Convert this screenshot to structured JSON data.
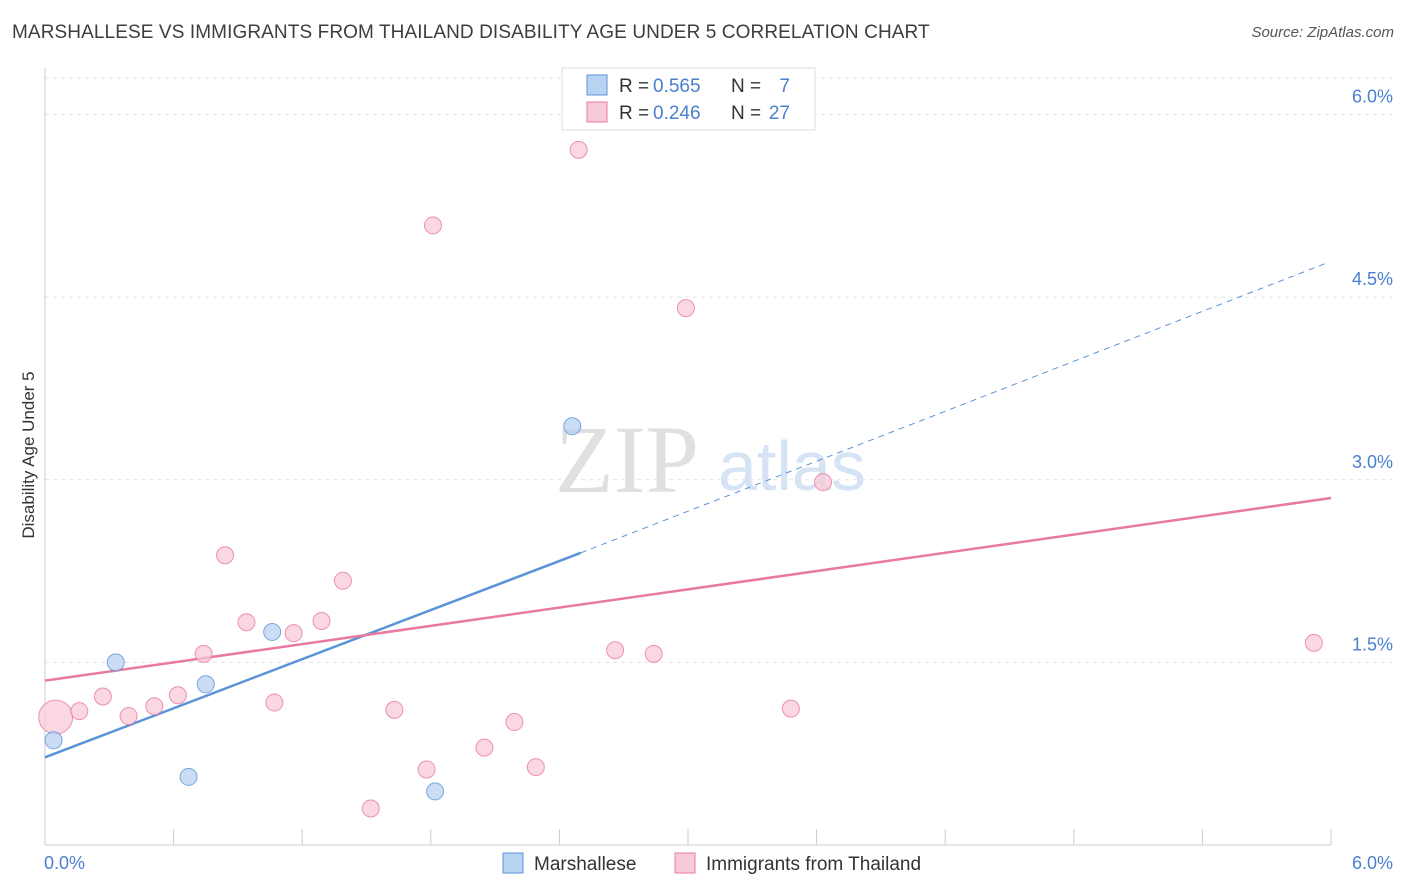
{
  "chart_data": {
    "type": "scatter",
    "title": "MARSHALLESE VS IMMIGRANTS FROM THAILAND DISABILITY AGE UNDER 5 CORRELATION CHART",
    "source": "Source: ZipAtlas.com",
    "xlabel": "",
    "ylabel": "Disability Age Under 5",
    "xlim": [
      0,
      6.0
    ],
    "ylim": [
      0,
      6.3
    ],
    "x_tick_labels": {
      "min": "0.0%",
      "max": "6.0%"
    },
    "y_ticks": [
      {
        "value": 1.5,
        "label": "1.5%"
      },
      {
        "value": 3.0,
        "label": "3.0%"
      },
      {
        "value": 4.5,
        "label": "4.5%"
      },
      {
        "value": 6.0,
        "label": "6.0%"
      }
    ],
    "grid": true,
    "watermark": {
      "zip": "ZIP",
      "atlas": "atlas"
    },
    "legend_stats": [
      {
        "r_label": "R =",
        "r_value": "0.565",
        "n_label": "N =",
        "n_value": "7"
      },
      {
        "r_label": "R =",
        "r_value": "0.246",
        "n_label": "N =",
        "n_value": "27"
      }
    ],
    "series": [
      {
        "name": "Marshallese",
        "color": "#5b93d8",
        "fill": "#b8d2f2",
        "points": [
          {
            "x": 0.04,
            "y": 0.86
          },
          {
            "x": 0.33,
            "y": 1.5
          },
          {
            "x": 0.67,
            "y": 0.56
          },
          {
            "x": 0.75,
            "y": 1.32
          },
          {
            "x": 1.06,
            "y": 1.75
          },
          {
            "x": 1.82,
            "y": 0.44
          },
          {
            "x": 2.46,
            "y": 3.44
          }
        ],
        "trend": {
          "x0": 0.0,
          "y0": 0.72,
          "x1": 2.5,
          "y1": 2.4,
          "dash_x1": 5.98,
          "dash_y1": 4.78
        }
      },
      {
        "name": "Immigrants from Thailand",
        "color": "#e87aa0",
        "fill": "#f8c9d7",
        "points": [
          {
            "x": 0.05,
            "y": 1.05,
            "big": true
          },
          {
            "x": 0.16,
            "y": 1.1
          },
          {
            "x": 0.27,
            "y": 1.22
          },
          {
            "x": 0.39,
            "y": 1.06
          },
          {
            "x": 0.51,
            "y": 1.14
          },
          {
            "x": 0.62,
            "y": 1.23
          },
          {
            "x": 0.74,
            "y": 1.57
          },
          {
            "x": 0.84,
            "y": 2.38
          },
          {
            "x": 0.94,
            "y": 1.83
          },
          {
            "x": 1.07,
            "y": 1.17
          },
          {
            "x": 1.16,
            "y": 1.74
          },
          {
            "x": 1.29,
            "y": 1.84
          },
          {
            "x": 1.39,
            "y": 2.17
          },
          {
            "x": 1.52,
            "y": 0.3
          },
          {
            "x": 1.63,
            "y": 1.11
          },
          {
            "x": 1.78,
            "y": 0.62
          },
          {
            "x": 1.81,
            "y": 5.09
          },
          {
            "x": 2.05,
            "y": 0.8
          },
          {
            "x": 2.19,
            "y": 1.01
          },
          {
            "x": 2.29,
            "y": 0.64
          },
          {
            "x": 2.49,
            "y": 5.71
          },
          {
            "x": 2.66,
            "y": 1.6
          },
          {
            "x": 2.84,
            "y": 1.57
          },
          {
            "x": 2.99,
            "y": 4.41
          },
          {
            "x": 3.48,
            "y": 1.12
          },
          {
            "x": 3.63,
            "y": 2.98
          },
          {
            "x": 5.92,
            "y": 1.66
          }
        ],
        "trend": {
          "x0": 0.0,
          "y0": 1.35,
          "x1": 6.0,
          "y1": 2.85
        }
      }
    ]
  }
}
